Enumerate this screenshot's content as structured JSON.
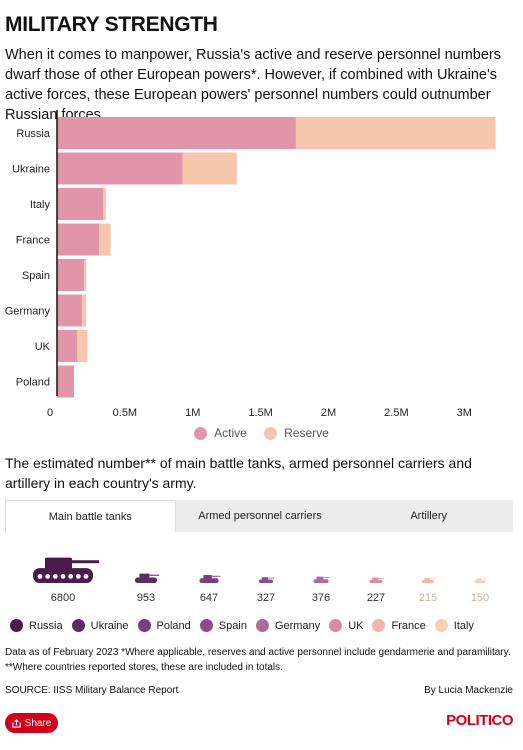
{
  "header": {
    "title": "MILITARY STRENGTH",
    "subtitle": "When it comes to manpower, Russia's active and reserve personnel numbers dwarf those of other European powers*. However, if combined with Ukraine's active forces, these European powers' personnel numbers could outnumber Russian forces."
  },
  "colors": {
    "active": "#e096a8",
    "reserve": "#f5c6ac"
  },
  "chart_data": [
    {
      "type": "bar",
      "orientation": "horizontal",
      "stacked": true,
      "categories": [
        "Russia",
        "Ukraine",
        "Italy",
        "France",
        "Spain",
        "Germany",
        "UK",
        "Poland"
      ],
      "series": [
        {
          "name": "Active",
          "values": [
            1760000,
            925000,
            340000,
            310000,
            200000,
            185000,
            150000,
            125000
          ]
        },
        {
          "name": "Reserve",
          "values": [
            1470000,
            400000,
            20000,
            85000,
            15000,
            30000,
            75000,
            0
          ]
        }
      ],
      "xlim": [
        0,
        3300000
      ],
      "x_ticks": [
        0,
        500000,
        1000000,
        1500000,
        2000000,
        2500000,
        3000000
      ],
      "x_tick_labels": [
        "0",
        "0.5M",
        "1M",
        "1.5M",
        "2M",
        "2.5M",
        "3M"
      ],
      "legend_position": "bottom-center"
    },
    {
      "type": "pictogram",
      "title": "Main battle tanks",
      "categories": [
        "Russia",
        "Ukraine",
        "Poland",
        "Spain",
        "Germany",
        "UK",
        "France",
        "Italy"
      ],
      "values": [
        6800,
        953,
        647,
        327,
        376,
        227,
        215,
        150
      ],
      "labels": [
        "6800",
        "953",
        "647",
        "327",
        "376",
        "227",
        "215",
        "150"
      ],
      "colors": [
        "#4a1a4f",
        "#5e2a68",
        "#7a3d80",
        "#8e4a8c",
        "#b06a9a",
        "#d88da4",
        "#f1b5ac",
        "#f7cfb4"
      ]
    }
  ],
  "legend1": {
    "active": "Active",
    "reserve": "Reserve"
  },
  "subtitle2": "The estimated number** of main battle tanks, armed personnel carriers and artillery in each country's army.",
  "tabs": {
    "tanks": "Main battle tanks",
    "apc": "Armed personnel carriers",
    "artillery": "Artillery"
  },
  "legend2": [
    "Russia",
    "Ukraine",
    "Poland",
    "Spain",
    "Germany",
    "UK",
    "France",
    "Italy"
  ],
  "note": "Data as of February 2023 *Where applicable, reserves and active personnel include gendarmerie and paramilitary. **Where countries reported stores, these are included in totals.",
  "source": "SOURCE: IISS Military Balance Report",
  "byline": "By Lucia Mackenzie",
  "share": "Share",
  "logo": "POLITICO"
}
